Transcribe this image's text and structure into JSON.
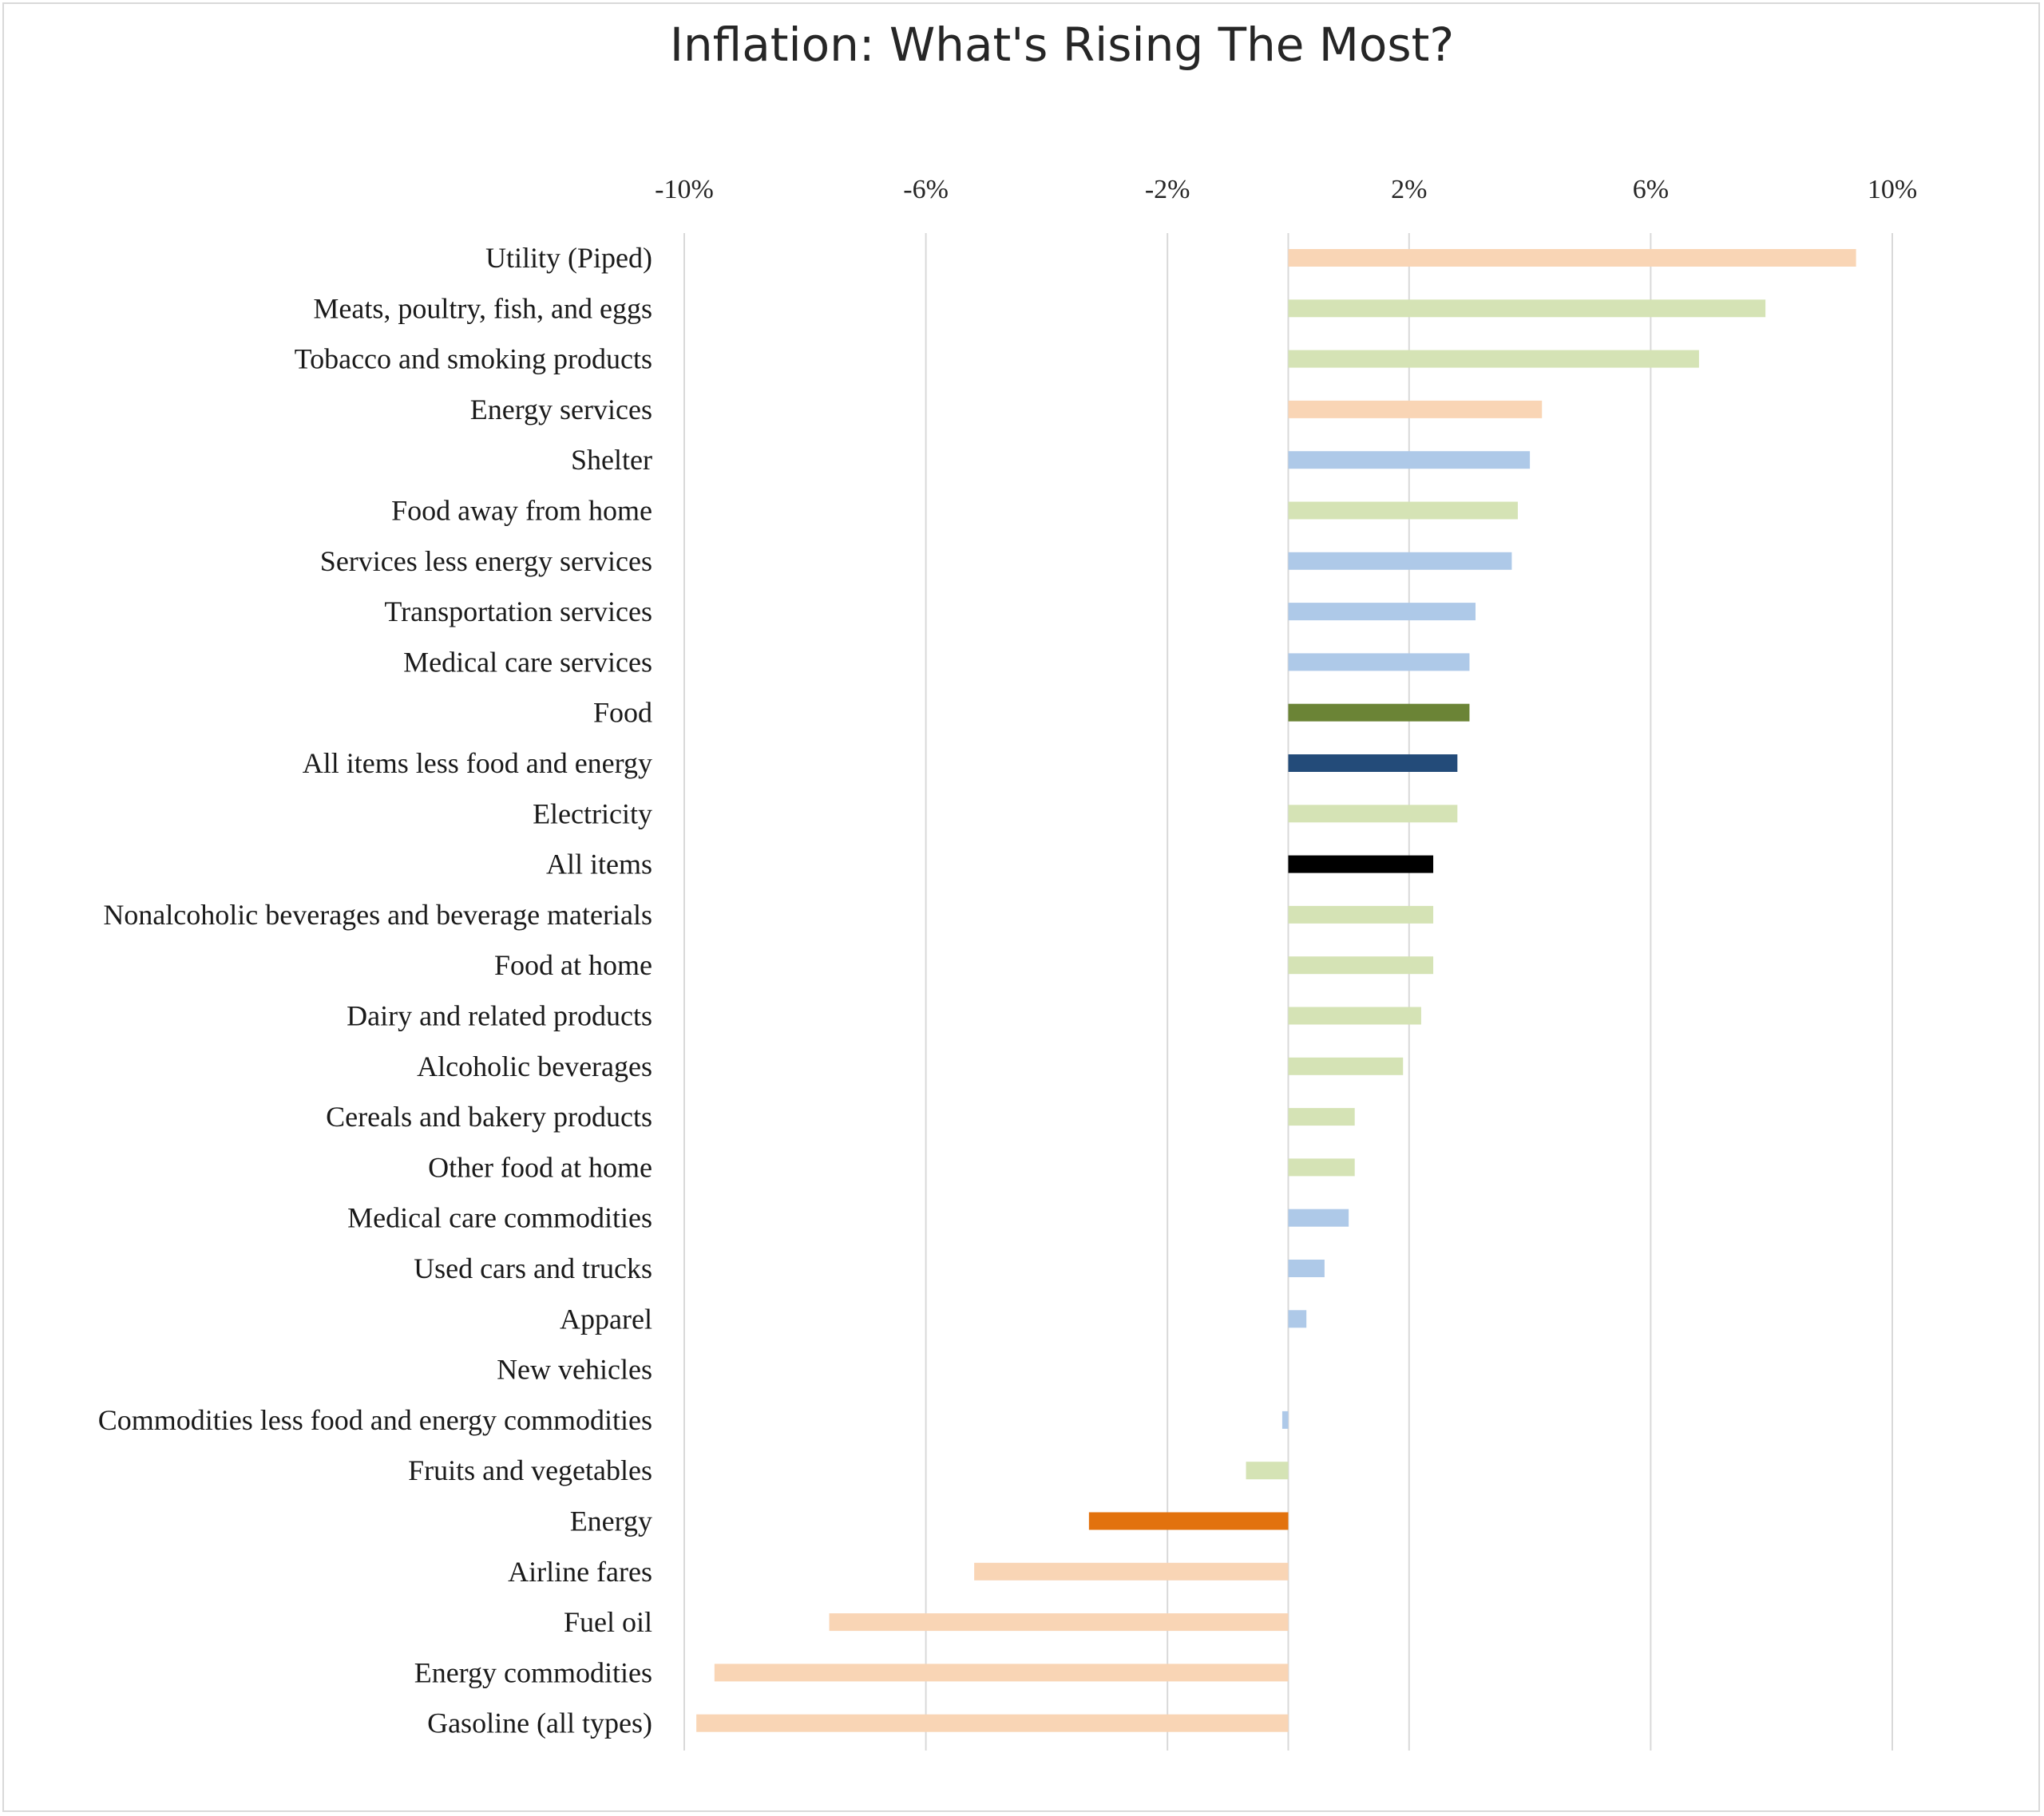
{
  "chart_data": {
    "type": "bar",
    "orientation": "horizontal",
    "title": "Inflation: What's Rising The Most?",
    "xlabel": "",
    "ylabel": "",
    "xlim": [
      -10,
      10
    ],
    "x_ticks": [
      "-10%",
      "-6%",
      "-2%",
      "2%",
      "6%",
      "10%"
    ],
    "x_tick_values": [
      -10,
      -6,
      -2,
      2,
      6,
      10
    ],
    "x_axis_position": "top",
    "grid": true,
    "legend": "none",
    "categories": [
      "Utility (Piped)",
      "Meats, poultry, fish, and eggs",
      "Tobacco and smoking products",
      "Energy services",
      "Shelter",
      "Food away from home",
      "Services less energy services",
      "Transportation services",
      "Medical care services",
      "Food",
      "All items less food and energy",
      "Electricity",
      "All items",
      "Nonalcoholic beverages and beverage materials",
      "Food at home",
      "Dairy and related products",
      "Alcoholic beverages",
      "Cereals and bakery products",
      "Other food at home",
      "Medical care commodities",
      "Used cars and trucks",
      "Apparel",
      "New vehicles",
      "Commodities less food and energy commodities",
      "Fruits and vegetables",
      "Energy",
      "Airline fares",
      "Fuel oil",
      "Energy commodities",
      "Gasoline (all types)"
    ],
    "values": [
      9.4,
      7.9,
      6.8,
      4.2,
      4.0,
      3.8,
      3.7,
      3.1,
      3.0,
      3.0,
      2.8,
      2.8,
      2.4,
      2.4,
      2.4,
      2.2,
      1.9,
      1.1,
      1.1,
      1.0,
      0.6,
      0.3,
      0.0,
      -0.1,
      -0.7,
      -3.3,
      -5.2,
      -7.6,
      -9.5,
      -9.8
    ],
    "colors": [
      "#f9d5b5",
      "#d5e3b5",
      "#d5e3b5",
      "#f9d5b5",
      "#aec9e8",
      "#d5e3b5",
      "#aec9e8",
      "#aec9e8",
      "#aec9e8",
      "#6b8436",
      "#234b79",
      "#d5e3b5",
      "#000000",
      "#d5e3b5",
      "#d5e3b5",
      "#d5e3b5",
      "#d5e3b5",
      "#d5e3b5",
      "#d5e3b5",
      "#aec9e8",
      "#aec9e8",
      "#aec9e8",
      "#aec9e8",
      "#aec9e8",
      "#d5e3b5",
      "#e2720e",
      "#f9d5b5",
      "#f9d5b5",
      "#f9d5b5",
      "#f9d5b5"
    ]
  }
}
